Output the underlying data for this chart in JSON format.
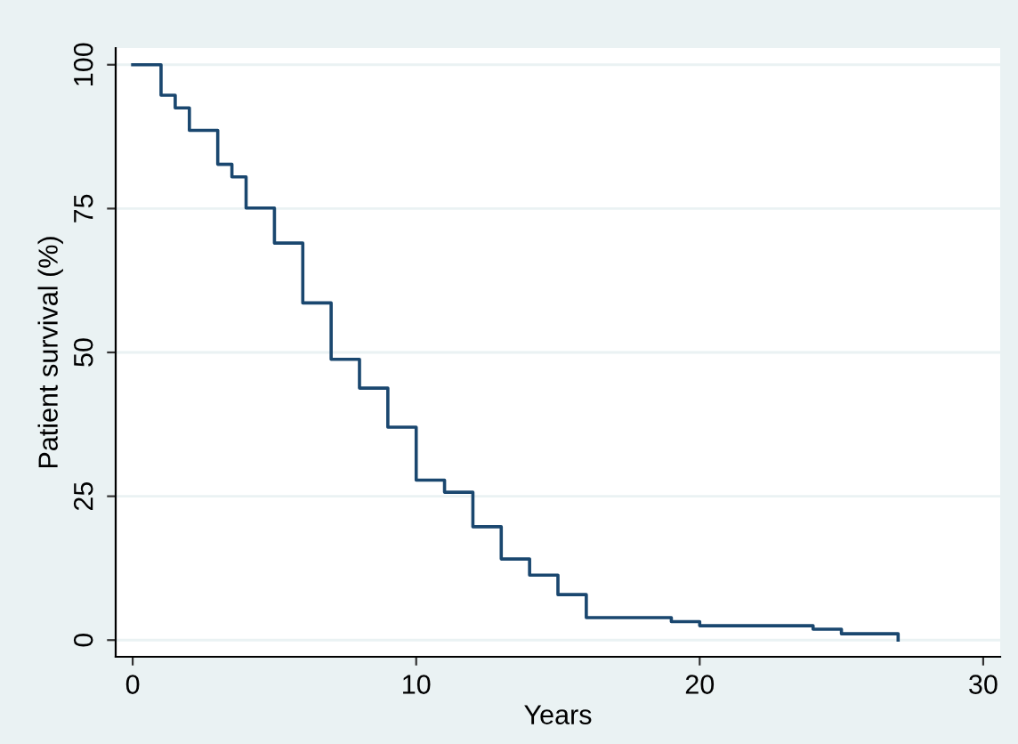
{
  "chart_data": {
    "type": "step",
    "xlabel": "Years",
    "ylabel": "Patient survival (%)",
    "x": [
      0,
      1,
      1.5,
      2,
      3,
      3.5,
      4,
      5,
      6,
      7,
      8,
      9,
      10,
      11,
      12,
      13,
      14,
      15,
      16,
      19,
      20,
      24,
      25,
      27
    ],
    "series": [
      {
        "color": "#1a476f",
        "values": [
          100,
          94.7,
          92.5,
          88.6,
          82.7,
          80.5,
          75.1,
          69,
          58.6,
          48.8,
          43.8,
          37,
          27.8,
          25.7,
          19.7,
          14.1,
          11.3,
          7.9,
          3.9,
          3.2,
          2.5,
          1.9,
          1.1,
          0
        ]
      }
    ],
    "xlim": [
      -0.6,
      30.6
    ],
    "ylim": [
      -2.9,
      102.9
    ],
    "xticks": [
      0,
      10,
      20,
      30
    ],
    "yticks": [
      0,
      25,
      50,
      75,
      100
    ],
    "grid": "y",
    "marker": "none",
    "line_style": "solid"
  }
}
